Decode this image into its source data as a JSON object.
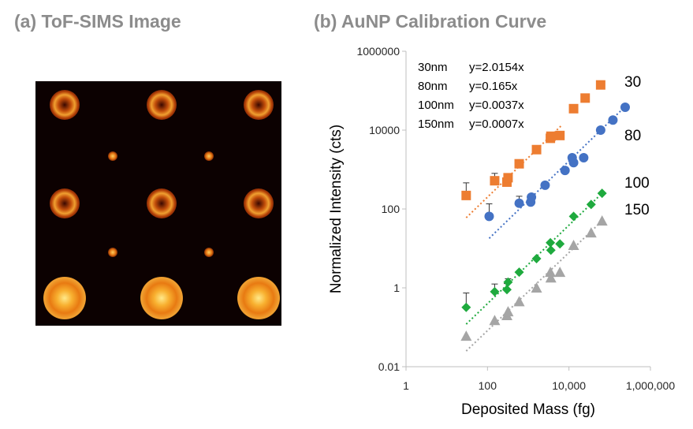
{
  "panel_a": {
    "title": "(a) ToF-SIMS Image"
  },
  "chart_data": {
    "type": "scatter",
    "title": "(b) AuNP Calibration Curve",
    "xlabel": "Deposited Mass (fg)",
    "ylabel": "Normalized Intensity (cts)",
    "x_scale": "log",
    "y_scale": "log",
    "xlim": [
      1,
      1000000
    ],
    "ylim": [
      0.01,
      1000000
    ],
    "x_ticks": [
      {
        "value": 1,
        "label": "1"
      },
      {
        "value": 100,
        "label": "100"
      },
      {
        "value": 10000,
        "label": "10,000"
      },
      {
        "value": 1000000,
        "label": "1,000,000"
      }
    ],
    "y_ticks": [
      {
        "value": 0.01,
        "label": "0.01"
      },
      {
        "value": 1,
        "label": "1"
      },
      {
        "value": 100,
        "label": "100"
      },
      {
        "value": 10000,
        "label": "10000"
      },
      {
        "value": 1000000,
        "label": "1000000"
      }
    ],
    "grid": false,
    "equations": [
      {
        "size": "30nm",
        "eq": "y=2.0154x"
      },
      {
        "size": "80nm",
        "eq": "y=0.165x"
      },
      {
        "size": "100nm",
        "eq": "y=0.0037x"
      },
      {
        "size": "150nm",
        "eq": "y=0.0007x"
      }
    ],
    "series": [
      {
        "name": "30",
        "color": "#ed7d31",
        "marker": "square",
        "x": [
          30,
          150,
          300,
          320,
          600,
          1600,
          3500,
          3600,
          6000,
          13000,
          25000,
          60000
        ],
        "y": [
          220,
          520,
          480,
          620,
          1400,
          3200,
          6200,
          7000,
          7300,
          35000,
          65000,
          140000
        ],
        "err_plus": [
          240,
          280,
          140,
          140,
          0,
          0,
          0,
          0,
          0,
          0,
          0,
          0
        ],
        "fit_x": [
          30,
          6500
        ],
        "fit_y": [
          60,
          13000
        ]
      },
      {
        "name": "80",
        "color": "#4472c4",
        "marker": "circle",
        "x": [
          110,
          600,
          1150,
          1200,
          2600,
          8000,
          12000,
          13000,
          23000,
          60000,
          120000,
          240000
        ],
        "y": [
          65,
          140,
          150,
          200,
          400,
          950,
          2000,
          1500,
          2000,
          10000,
          18000,
          38000
        ],
        "err_plus": [
          70,
          70,
          0,
          0,
          0,
          0,
          0,
          0,
          0,
          0,
          0,
          0
        ],
        "fit_x": [
          110,
          230000
        ],
        "fit_y": [
          18,
          38000
        ]
      },
      {
        "name": "100",
        "color": "#1faa3e",
        "marker": "diamond",
        "x": [
          30,
          150,
          300,
          320,
          600,
          1600,
          3500,
          3600,
          6000,
          13000,
          35000,
          65000
        ],
        "y": [
          0.32,
          0.8,
          0.9,
          1.4,
          2.5,
          5.5,
          14,
          9,
          13,
          65,
          130,
          250
        ],
        "err_plus": [
          0.42,
          0.45,
          0.38,
          0.3,
          0,
          0,
          0,
          0,
          0,
          0,
          0,
          0
        ],
        "fit_x": [
          30,
          65000
        ],
        "fit_y": [
          0.12,
          250
        ]
      },
      {
        "name": "150",
        "color": "#a5a5a5",
        "marker": "triangle",
        "x": [
          30,
          150,
          300,
          320,
          600,
          1600,
          3500,
          3600,
          6000,
          13000,
          35000,
          65000
        ],
        "y": [
          0.06,
          0.15,
          0.2,
          0.25,
          0.45,
          1.0,
          2.5,
          1.8,
          2.5,
          12,
          25,
          50
        ],
        "err_plus": [
          0,
          0,
          0,
          0,
          0,
          0,
          0,
          0,
          0,
          0,
          0,
          0
        ],
        "fit_x": [
          30,
          65000
        ],
        "fit_y": [
          0.025,
          50
        ]
      }
    ]
  }
}
